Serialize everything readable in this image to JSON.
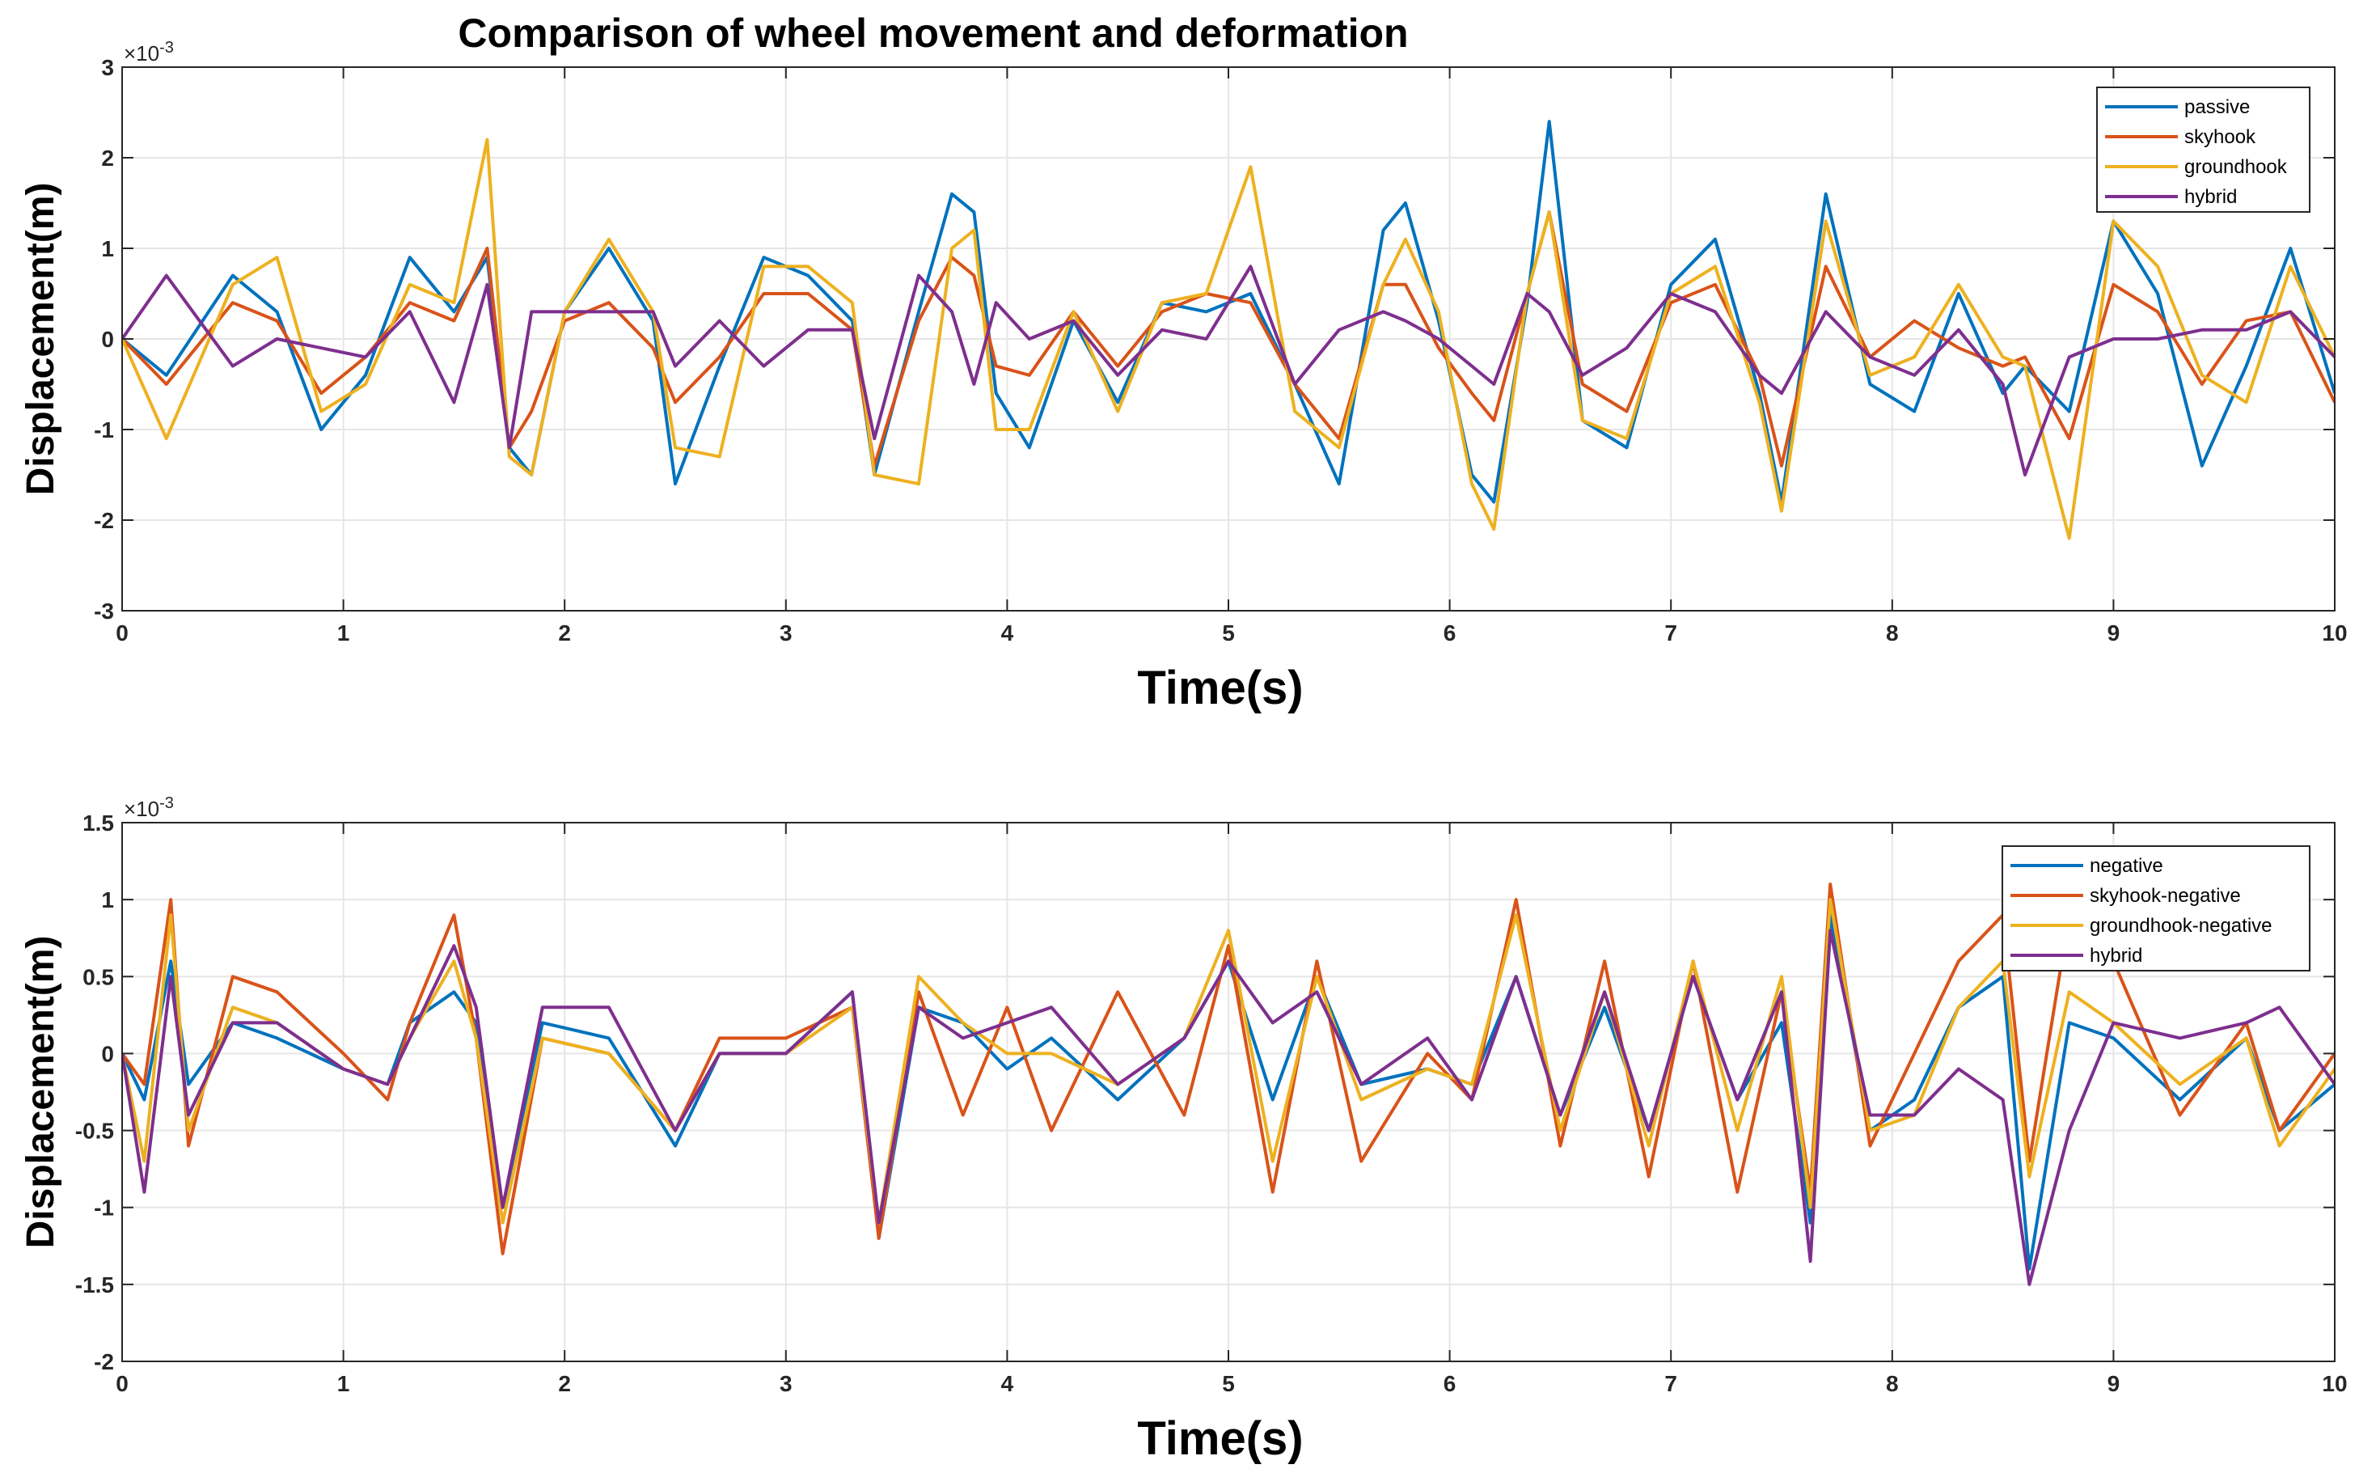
{
  "figure_title": "Comparison of wheel movement and deformation",
  "chart_data": [
    {
      "type": "line",
      "title": "Comparison of wheel movement and deformation",
      "xlabel": "Time(s)",
      "ylabel": "Displacement(m)",
      "y_exponent_label": "×10",
      "y_exponent": "-3",
      "xlim": [
        0,
        10
      ],
      "ylim": [
        -3,
        3
      ],
      "xticks": [
        "0",
        "1",
        "2",
        "3",
        "4",
        "5",
        "6",
        "7",
        "8",
        "9",
        "10"
      ],
      "yticks": [
        "-3",
        "-2",
        "-1",
        "0",
        "1",
        "2",
        "3"
      ],
      "grid": true,
      "legend_position": "top-right",
      "series": [
        {
          "name": "passive",
          "color": "#0072BD",
          "x": [
            0,
            0.2,
            0.5,
            0.7,
            0.9,
            1.1,
            1.3,
            1.5,
            1.65,
            1.75,
            1.85,
            2.0,
            2.2,
            2.4,
            2.5,
            2.7,
            2.9,
            3.1,
            3.3,
            3.4,
            3.6,
            3.75,
            3.85,
            3.95,
            4.1,
            4.3,
            4.5,
            4.7,
            4.9,
            5.1,
            5.3,
            5.5,
            5.7,
            5.8,
            5.95,
            6.1,
            6.2,
            6.35,
            6.45,
            6.6,
            6.8,
            7.0,
            7.2,
            7.4,
            7.5,
            7.7,
            7.9,
            8.1,
            8.3,
            8.5,
            8.6,
            8.8,
            9.0,
            9.2,
            9.4,
            9.6,
            9.8,
            10.0
          ],
          "y": [
            0,
            -0.4,
            0.7,
            0.3,
            -1.0,
            -0.4,
            0.9,
            0.3,
            0.9,
            -1.2,
            -1.5,
            0.3,
            1.0,
            0.2,
            -1.6,
            -0.3,
            0.9,
            0.7,
            0.2,
            -1.5,
            0.3,
            1.6,
            1.4,
            -0.6,
            -1.2,
            0.2,
            -0.7,
            0.4,
            0.3,
            0.5,
            -0.5,
            -1.6,
            1.2,
            1.5,
            0.2,
            -1.5,
            -1.8,
            0.4,
            2.4,
            -0.9,
            -1.2,
            0.6,
            1.1,
            -0.6,
            -1.8,
            1.6,
            -0.5,
            -0.8,
            0.5,
            -0.6,
            -0.3,
            -0.8,
            1.3,
            0.5,
            -1.4,
            -0.3,
            1.0,
            -0.6
          ]
        },
        {
          "name": "skyhook",
          "color": "#D95319",
          "x": [
            0,
            0.2,
            0.5,
            0.7,
            0.9,
            1.1,
            1.3,
            1.5,
            1.65,
            1.75,
            1.85,
            2.0,
            2.2,
            2.4,
            2.5,
            2.7,
            2.9,
            3.1,
            3.3,
            3.4,
            3.6,
            3.75,
            3.85,
            3.95,
            4.1,
            4.3,
            4.5,
            4.7,
            4.9,
            5.1,
            5.3,
            5.5,
            5.7,
            5.8,
            5.95,
            6.1,
            6.2,
            6.35,
            6.45,
            6.6,
            6.8,
            7.0,
            7.2,
            7.4,
            7.5,
            7.7,
            7.9,
            8.1,
            8.3,
            8.5,
            8.6,
            8.8,
            9.0,
            9.2,
            9.4,
            9.6,
            9.8,
            10.0
          ],
          "y": [
            0,
            -0.5,
            0.4,
            0.2,
            -0.6,
            -0.2,
            0.4,
            0.2,
            1.0,
            -1.2,
            -0.8,
            0.2,
            0.4,
            -0.1,
            -0.7,
            -0.2,
            0.5,
            0.5,
            0.1,
            -1.4,
            0.2,
            0.9,
            0.7,
            -0.3,
            -0.4,
            0.3,
            -0.3,
            0.3,
            0.5,
            0.4,
            -0.5,
            -1.1,
            0.6,
            0.6,
            -0.1,
            -0.6,
            -0.9,
            0.5,
            1.4,
            -0.5,
            -0.8,
            0.4,
            0.6,
            -0.4,
            -1.4,
            0.8,
            -0.2,
            0.2,
            -0.1,
            -0.3,
            -0.2,
            -1.1,
            0.6,
            0.3,
            -0.5,
            0.2,
            0.3,
            -0.7
          ]
        },
        {
          "name": "groundhook",
          "color": "#EDB120",
          "x": [
            0,
            0.2,
            0.5,
            0.7,
            0.9,
            1.1,
            1.3,
            1.5,
            1.65,
            1.75,
            1.85,
            2.0,
            2.2,
            2.4,
            2.5,
            2.7,
            2.9,
            3.1,
            3.3,
            3.4,
            3.6,
            3.75,
            3.85,
            3.95,
            4.1,
            4.3,
            4.5,
            4.7,
            4.9,
            5.1,
            5.3,
            5.5,
            5.7,
            5.8,
            5.95,
            6.1,
            6.2,
            6.35,
            6.45,
            6.6,
            6.8,
            7.0,
            7.2,
            7.4,
            7.5,
            7.7,
            7.9,
            8.1,
            8.3,
            8.5,
            8.6,
            8.8,
            9.0,
            9.2,
            9.4,
            9.6,
            9.8,
            10.0
          ],
          "y": [
            0,
            -1.1,
            0.6,
            0.9,
            -0.8,
            -0.5,
            0.6,
            0.4,
            2.2,
            -1.3,
            -1.5,
            0.3,
            1.1,
            0.3,
            -1.2,
            -1.3,
            0.8,
            0.8,
            0.4,
            -1.5,
            -1.6,
            1.0,
            1.2,
            -1.0,
            -1.0,
            0.3,
            -0.8,
            0.4,
            0.5,
            1.9,
            -0.8,
            -1.2,
            0.6,
            1.1,
            0.3,
            -1.6,
            -2.1,
            0.5,
            1.4,
            -0.9,
            -1.1,
            0.5,
            0.8,
            -0.7,
            -1.9,
            1.3,
            -0.4,
            -0.2,
            0.6,
            -0.2,
            -0.3,
            -2.2,
            1.3,
            0.8,
            -0.4,
            -0.7,
            0.8,
            -0.2
          ]
        },
        {
          "name": "hybrid",
          "color": "#7E2F8E",
          "x": [
            0,
            0.2,
            0.5,
            0.7,
            0.9,
            1.1,
            1.3,
            1.5,
            1.65,
            1.75,
            1.85,
            2.0,
            2.2,
            2.4,
            2.5,
            2.7,
            2.9,
            3.1,
            3.3,
            3.4,
            3.6,
            3.75,
            3.85,
            3.95,
            4.1,
            4.3,
            4.5,
            4.7,
            4.9,
            5.1,
            5.3,
            5.5,
            5.7,
            5.8,
            5.95,
            6.1,
            6.2,
            6.35,
            6.45,
            6.6,
            6.8,
            7.0,
            7.2,
            7.4,
            7.5,
            7.7,
            7.9,
            8.1,
            8.3,
            8.5,
            8.6,
            8.8,
            9.0,
            9.2,
            9.4,
            9.6,
            9.8,
            10.0
          ],
          "y": [
            0,
            0.7,
            -0.3,
            0.0,
            -0.1,
            -0.2,
            0.3,
            -0.7,
            0.6,
            -1.2,
            0.3,
            0.3,
            0.3,
            0.3,
            -0.3,
            0.2,
            -0.3,
            0.1,
            0.1,
            -1.1,
            0.7,
            0.3,
            -0.5,
            0.4,
            0.0,
            0.2,
            -0.4,
            0.1,
            0.0,
            0.8,
            -0.5,
            0.1,
            0.3,
            0.2,
            0.0,
            -0.3,
            -0.5,
            0.5,
            0.3,
            -0.4,
            -0.1,
            0.5,
            0.3,
            -0.4,
            -0.6,
            0.3,
            -0.2,
            -0.4,
            0.1,
            -0.5,
            -1.5,
            -0.2,
            0.0,
            0.0,
            0.1,
            0.1,
            0.3,
            -0.2
          ]
        }
      ]
    },
    {
      "type": "line",
      "title": "",
      "xlabel": "Time(s)",
      "ylabel": "Displacement(m)",
      "y_exponent_label": "×10",
      "y_exponent": "-3",
      "xlim": [
        0,
        10
      ],
      "ylim": [
        -2,
        1.5
      ],
      "xticks": [
        "0",
        "1",
        "2",
        "3",
        "4",
        "5",
        "6",
        "7",
        "8",
        "9",
        "10"
      ],
      "yticks": [
        "-2",
        "-1.5",
        "-1",
        "-0.5",
        "0",
        "0.5",
        "1",
        "1.5"
      ],
      "grid": true,
      "legend_position": "top-right",
      "series": [
        {
          "name": "negative",
          "color": "#0072BD",
          "x": [
            0,
            0.1,
            0.22,
            0.3,
            0.5,
            0.7,
            1.0,
            1.2,
            1.3,
            1.5,
            1.6,
            1.72,
            1.9,
            2.2,
            2.5,
            2.7,
            3.0,
            3.3,
            3.42,
            3.6,
            3.8,
            4.0,
            4.2,
            4.5,
            4.8,
            5.0,
            5.2,
            5.4,
            5.6,
            5.9,
            6.1,
            6.3,
            6.5,
            6.7,
            6.9,
            7.1,
            7.3,
            7.5,
            7.63,
            7.72,
            7.9,
            8.1,
            8.3,
            8.5,
            8.62,
            8.8,
            9.0,
            9.3,
            9.6,
            9.75,
            10.0
          ],
          "y": [
            0,
            -0.3,
            0.6,
            -0.2,
            0.2,
            0.1,
            -0.1,
            -0.2,
            0.2,
            0.4,
            0.2,
            -1.0,
            0.2,
            0.1,
            -0.6,
            0.0,
            0.0,
            0.4,
            -1.2,
            0.3,
            0.2,
            -0.1,
            0.1,
            -0.3,
            0.1,
            0.6,
            -0.3,
            0.5,
            -0.2,
            -0.1,
            -0.2,
            0.5,
            -0.4,
            0.3,
            -0.5,
            0.5,
            -0.3,
            0.2,
            -1.1,
            0.9,
            -0.5,
            -0.3,
            0.3,
            0.5,
            -1.4,
            0.2,
            0.1,
            -0.3,
            0.1,
            -0.5,
            -0.2
          ]
        },
        {
          "name": "skyhook-negative",
          "color": "#D95319",
          "x": [
            0,
            0.1,
            0.22,
            0.3,
            0.5,
            0.7,
            1.0,
            1.2,
            1.3,
            1.5,
            1.6,
            1.72,
            1.9,
            2.2,
            2.5,
            2.7,
            3.0,
            3.3,
            3.42,
            3.6,
            3.8,
            4.0,
            4.2,
            4.5,
            4.8,
            5.0,
            5.2,
            5.4,
            5.6,
            5.9,
            6.1,
            6.3,
            6.5,
            6.7,
            6.9,
            7.1,
            7.3,
            7.5,
            7.63,
            7.72,
            7.9,
            8.1,
            8.3,
            8.5,
            8.62,
            8.8,
            9.0,
            9.3,
            9.6,
            9.75,
            10.0
          ],
          "y": [
            0,
            -0.2,
            1.0,
            -0.6,
            0.5,
            0.4,
            0.0,
            -0.3,
            0.2,
            0.9,
            0.1,
            -1.3,
            0.1,
            0.0,
            -0.5,
            0.1,
            0.1,
            0.3,
            -1.2,
            0.4,
            -0.4,
            0.3,
            -0.5,
            0.4,
            -0.4,
            0.7,
            -0.9,
            0.6,
            -0.7,
            0.0,
            -0.3,
            1.0,
            -0.6,
            0.6,
            -0.8,
            0.6,
            -0.9,
            0.4,
            -0.9,
            1.1,
            -0.6,
            0.0,
            0.6,
            0.9,
            -0.7,
            0.9,
            0.6,
            -0.4,
            0.2,
            -0.5,
            0.0
          ]
        },
        {
          "name": "groundhook-negative",
          "color": "#EDB120",
          "x": [
            0,
            0.1,
            0.22,
            0.3,
            0.5,
            0.7,
            1.0,
            1.2,
            1.3,
            1.5,
            1.6,
            1.72,
            1.9,
            2.2,
            2.5,
            2.7,
            3.0,
            3.3,
            3.42,
            3.6,
            3.8,
            4.0,
            4.2,
            4.5,
            4.8,
            5.0,
            5.2,
            5.4,
            5.6,
            5.9,
            6.1,
            6.3,
            6.5,
            6.7,
            6.9,
            7.1,
            7.3,
            7.5,
            7.63,
            7.72,
            7.9,
            8.1,
            8.3,
            8.5,
            8.62,
            8.8,
            9.0,
            9.3,
            9.6,
            9.75,
            10.0
          ],
          "y": [
            0,
            -0.7,
            0.9,
            -0.5,
            0.3,
            0.2,
            -0.1,
            -0.2,
            0.1,
            0.6,
            0.1,
            -1.1,
            0.1,
            0.0,
            -0.5,
            0.0,
            0.0,
            0.3,
            -1.1,
            0.5,
            0.2,
            0.0,
            0.0,
            -0.2,
            0.1,
            0.8,
            -0.7,
            0.5,
            -0.3,
            -0.1,
            -0.2,
            0.9,
            -0.5,
            0.4,
            -0.6,
            0.6,
            -0.5,
            0.5,
            -1.0,
            1.0,
            -0.5,
            -0.4,
            0.3,
            0.6,
            -0.8,
            0.4,
            0.2,
            -0.2,
            0.1,
            -0.6,
            -0.1
          ]
        },
        {
          "name": "hybrid",
          "color": "#7E2F8E",
          "x": [
            0,
            0.1,
            0.22,
            0.3,
            0.5,
            0.7,
            1.0,
            1.2,
            1.3,
            1.5,
            1.6,
            1.72,
            1.9,
            2.2,
            2.5,
            2.7,
            3.0,
            3.3,
            3.42,
            3.6,
            3.8,
            4.0,
            4.2,
            4.5,
            4.8,
            5.0,
            5.2,
            5.4,
            5.6,
            5.9,
            6.1,
            6.3,
            6.5,
            6.7,
            6.9,
            7.1,
            7.3,
            7.5,
            7.63,
            7.72,
            7.9,
            8.1,
            8.3,
            8.5,
            8.62,
            8.8,
            9.0,
            9.3,
            9.6,
            9.75,
            10.0
          ],
          "y": [
            0,
            -0.9,
            0.5,
            -0.4,
            0.2,
            0.2,
            -0.1,
            -0.2,
            0.1,
            0.7,
            0.3,
            -1.0,
            0.3,
            0.3,
            -0.5,
            0.0,
            0.0,
            0.4,
            -1.1,
            0.3,
            0.1,
            0.2,
            0.3,
            -0.2,
            0.1,
            0.6,
            0.2,
            0.4,
            -0.2,
            0.1,
            -0.3,
            0.5,
            -0.4,
            0.4,
            -0.5,
            0.5,
            -0.3,
            0.4,
            -1.35,
            0.8,
            -0.4,
            -0.4,
            -0.1,
            -0.3,
            -1.5,
            -0.5,
            0.2,
            0.1,
            0.2,
            0.3,
            -0.2
          ]
        }
      ]
    }
  ]
}
